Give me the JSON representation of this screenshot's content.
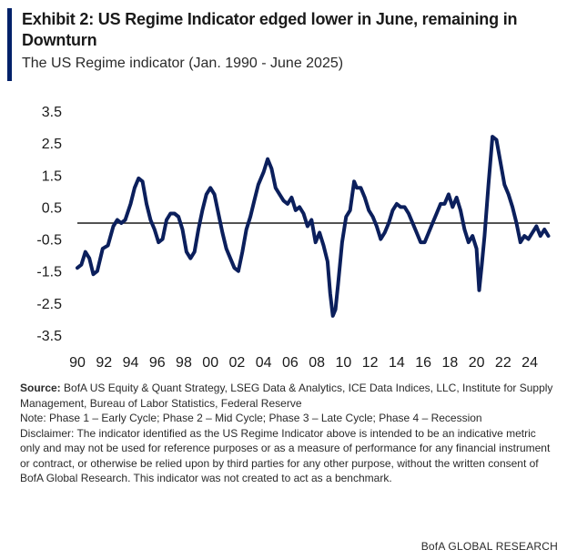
{
  "header": {
    "title": "Exhibit 2: US Regime Indicator edged lower in June, remaining in Downturn",
    "subtitle": "The US Regime indicator (Jan. 1990 - June 2025)"
  },
  "colors": {
    "accent": "#012169",
    "line": "#0b1f5c",
    "zero_line": "#1a1a1a"
  },
  "chart_data": {
    "type": "line",
    "title": "",
    "xlabel": "",
    "ylabel": "",
    "xlim": [
      1990,
      2025.5
    ],
    "ylim": [
      -3.5,
      3.5
    ],
    "yticks": [
      3.5,
      2.5,
      1.5,
      0.5,
      -0.5,
      -1.5,
      -2.5,
      -3.5
    ],
    "ytick_labels": [
      "3.5",
      "2.5",
      "1.5",
      "0.5",
      "-0.5",
      "-1.5",
      "-2.5",
      "-3.5"
    ],
    "xticks": [
      1990,
      1992,
      1994,
      1996,
      1998,
      2000,
      2002,
      2004,
      2006,
      2008,
      2010,
      2012,
      2014,
      2016,
      2018,
      2020,
      2022,
      2024
    ],
    "xtick_labels": [
      "90",
      "92",
      "94",
      "96",
      "98",
      "00",
      "02",
      "04",
      "06",
      "08",
      "10",
      "12",
      "14",
      "16",
      "18",
      "20",
      "22",
      "24"
    ],
    "reference_line": 0,
    "grid": false,
    "legend": "none",
    "series": [
      {
        "x": [
          1990.0,
          1990.3,
          1990.6,
          1990.9,
          1991.2,
          1991.5,
          1991.9,
          1992.3,
          1992.7,
          1993.0,
          1993.3,
          1993.6,
          1994.0,
          1994.3,
          1994.6,
          1994.9,
          1995.2,
          1995.5,
          1995.8,
          1996.1,
          1996.4,
          1996.7,
          1997.0,
          1997.3,
          1997.6,
          1997.9,
          1998.2,
          1998.5,
          1998.8,
          1999.1,
          1999.4,
          1999.7,
          2000.0,
          2000.3,
          2000.6,
          2000.9,
          2001.2,
          2001.5,
          2001.8,
          2002.1,
          2002.4,
          2002.7,
          2003.0,
          2003.3,
          2003.6,
          2004.0,
          2004.3,
          2004.6,
          2004.9,
          2005.2,
          2005.5,
          2005.8,
          2006.1,
          2006.4,
          2006.7,
          2007.0,
          2007.3,
          2007.6,
          2007.9,
          2008.2,
          2008.5,
          2008.8,
          2009.0,
          2009.2,
          2009.4,
          2009.6,
          2009.9,
          2010.2,
          2010.5,
          2010.8,
          2011.0,
          2011.3,
          2011.6,
          2011.9,
          2012.2,
          2012.5,
          2012.8,
          2013.1,
          2013.4,
          2013.7,
          2014.0,
          2014.3,
          2014.6,
          2014.9,
          2015.2,
          2015.5,
          2015.8,
          2016.1,
          2016.4,
          2016.7,
          2017.0,
          2017.3,
          2017.6,
          2017.9,
          2018.2,
          2018.5,
          2018.8,
          2019.1,
          2019.4,
          2019.7,
          2020.0,
          2020.2,
          2020.4,
          2020.6,
          2020.9,
          2021.2,
          2021.5,
          2021.8,
          2022.1,
          2022.4,
          2022.7,
          2023.0,
          2023.3,
          2023.6,
          2023.9,
          2024.2,
          2024.5,
          2024.8,
          2025.1,
          2025.4
        ],
        "y": [
          -1.4,
          -1.3,
          -0.9,
          -1.1,
          -1.6,
          -1.5,
          -0.8,
          -0.7,
          -0.1,
          0.1,
          0.0,
          0.1,
          0.6,
          1.1,
          1.4,
          1.3,
          0.6,
          0.1,
          -0.2,
          -0.6,
          -0.5,
          0.1,
          0.3,
          0.3,
          0.2,
          -0.2,
          -0.9,
          -1.1,
          -0.9,
          -0.2,
          0.4,
          0.9,
          1.1,
          0.9,
          0.3,
          -0.3,
          -0.8,
          -1.1,
          -1.4,
          -1.5,
          -0.9,
          -0.2,
          0.2,
          0.7,
          1.2,
          1.6,
          2.0,
          1.7,
          1.1,
          0.9,
          0.7,
          0.6,
          0.8,
          0.4,
          0.5,
          0.3,
          -0.1,
          0.1,
          -0.6,
          -0.3,
          -0.7,
          -1.2,
          -2.2,
          -2.9,
          -2.7,
          -1.9,
          -0.6,
          0.2,
          0.4,
          1.3,
          1.1,
          1.1,
          0.8,
          0.4,
          0.2,
          -0.1,
          -0.5,
          -0.3,
          0.0,
          0.4,
          0.6,
          0.5,
          0.5,
          0.3,
          0.0,
          -0.3,
          -0.6,
          -0.6,
          -0.3,
          0.0,
          0.3,
          0.6,
          0.6,
          0.9,
          0.5,
          0.8,
          0.4,
          -0.2,
          -0.6,
          -0.4,
          -0.8,
          -2.1,
          -1.3,
          -0.4,
          1.2,
          2.7,
          2.6,
          1.9,
          1.2,
          0.9,
          0.5,
          0.0,
          -0.6,
          -0.4,
          -0.5,
          -0.3,
          -0.1,
          -0.4,
          -0.2,
          -0.4
        ]
      }
    ]
  },
  "notes": {
    "source_label": "Source:",
    "source_text": "BofA US Equity & Quant Strategy, LSEG Data & Analytics, ICE Data Indices, LLC, Institute for Supply Management, Bureau of Labor Statistics, Federal Reserve",
    "phases": "Note: Phase 1 – Early Cycle; Phase 2 – Mid Cycle; Phase 3 – Late Cycle; Phase 4 – Recession",
    "disclaimer": "Disclaimer: The indicator identified as the US Regime Indicator above is intended to be an indicative metric only and may not be used for reference purposes or as a measure of performance for any financial instrument or contract, or otherwise be relied upon by third parties for any other purpose, without the written consent of BofA Global Research. This indicator was not created to act as a benchmark."
  },
  "footer": {
    "brand": "BofA GLOBAL RESEARCH"
  }
}
